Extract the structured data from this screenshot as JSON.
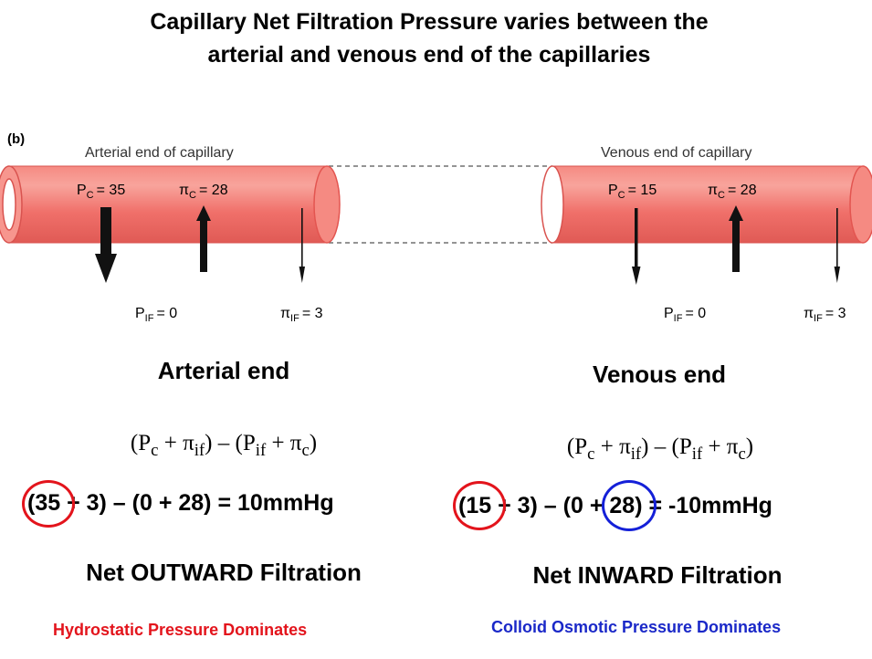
{
  "title_line1": "Capillary Net Filtration Pressure varies between the",
  "title_line2": "arterial and venous end of the capillaries",
  "diagram": {
    "panel_label": "(b)",
    "arterial_label": "Arterial end of capillary",
    "venous_label": "Venous end of capillary",
    "arterial": {
      "pc_sym": "P",
      "pc_sub": "C",
      "pc_val": "= 35",
      "pic_sym": "π",
      "pic_sub": "C",
      "pic_val": "= 28",
      "pif_sym": "P",
      "pif_sub": "IF",
      "pif_val": "= 0",
      "piif_sym": "π",
      "piif_sub": "IF",
      "piif_val": "= 3"
    },
    "venous": {
      "pc_sym": "P",
      "pc_sub": "C",
      "pc_val": "= 15",
      "pic_sym": "π",
      "pic_sub": "C",
      "pic_val": "= 28",
      "pif_sym": "P",
      "pif_sub": "IF",
      "pif_val": "= 0",
      "piif_sym": "π",
      "piif_sub": "IF",
      "piif_val": "= 3"
    },
    "colors": {
      "tube": "#f0706a",
      "tube_light": "#f8a49c",
      "arrow": "#111111",
      "dash": "#555555"
    }
  },
  "left": {
    "heading": "Arterial end",
    "formula": {
      "a": "(P",
      "a_sub": "c",
      "b": " + π",
      "b_sub": "if",
      "c": ") – (P",
      "c_sub": "if",
      "d": " + π",
      "d_sub": "c",
      "e": ")"
    },
    "eq_circled": "(35",
    "eq_rest": " + 3) – (0 + 28) = 10mmHg",
    "net": "Net OUTWARD Filtration",
    "note": "Hydrostatic Pressure Dominates",
    "note_color": "#e3141c"
  },
  "right": {
    "heading": "Venous end",
    "formula": {
      "a": "(P",
      "a_sub": "c",
      "b": " + π",
      "b_sub": "if",
      "c": ") – (P",
      "c_sub": "if",
      "d": " + π",
      "d_sub": "c",
      "e": ")"
    },
    "eq_circled": "(15",
    "eq_mid": " + 3) – (0 + ",
    "eq_circled2": "28)",
    "eq_rest": " = -10mmHg",
    "net": "Net INWARD Filtration",
    "note": "Colloid Osmotic Pressure Dominates",
    "note_color": "#1a28c8"
  }
}
